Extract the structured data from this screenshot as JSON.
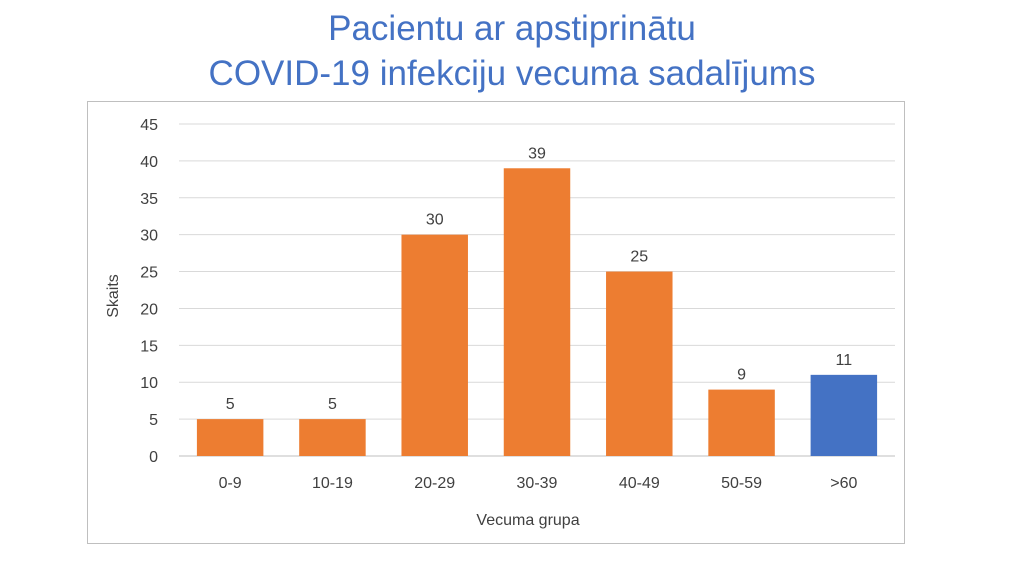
{
  "title_line1": "Pacientu ar apstiprinātu",
  "title_line2": "COVID-19 infekciju vecuma sadalījums",
  "chart_data": {
    "type": "bar",
    "title": "Pacientu ar apstiprinātu COVID-19 infekciju vecuma sadalījums",
    "xlabel": "Vecuma grupa",
    "ylabel": "Skaits",
    "categories": [
      "0-9",
      "10-19",
      "20-29",
      "30-39",
      "40-49",
      "50-59",
      ">60"
    ],
    "values": [
      5,
      5,
      30,
      39,
      25,
      9,
      11
    ],
    "bar_colors": [
      "#ed7d31",
      "#ed7d31",
      "#ed7d31",
      "#ed7d31",
      "#ed7d31",
      "#ed7d31",
      "#4472c4"
    ],
    "yticks": [
      0,
      5,
      10,
      15,
      20,
      25,
      30,
      35,
      40,
      45
    ],
    "ylim": [
      0,
      45
    ],
    "grid": true,
    "legend": "none"
  }
}
